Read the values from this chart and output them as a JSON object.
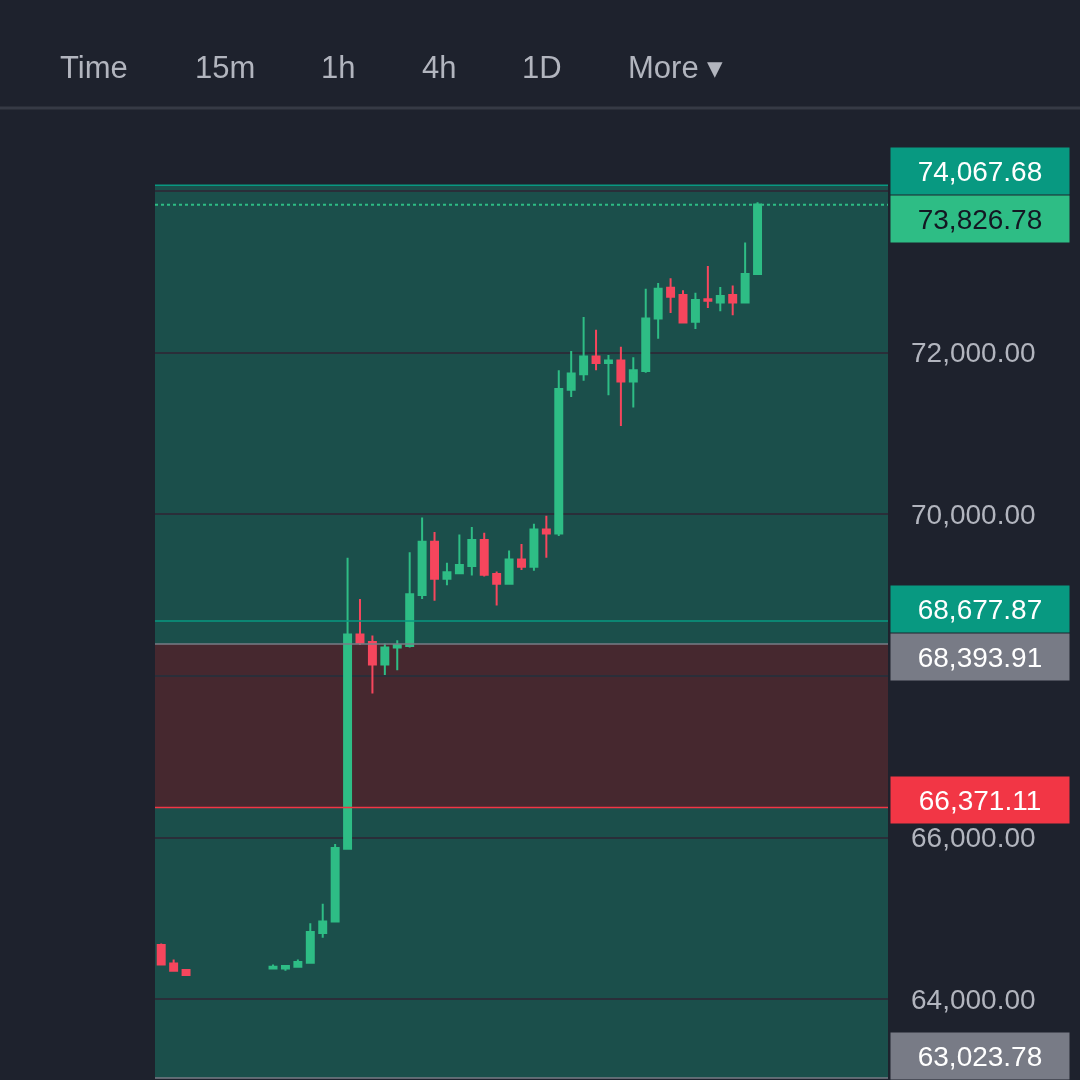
{
  "chart_data": {
    "type": "candlestick",
    "categories": [
      null,
      null,
      null,
      null,
      null,
      null,
      null,
      null,
      null,
      null,
      null,
      null,
      null,
      null,
      null,
      null,
      null,
      null,
      null,
      null,
      null,
      null,
      null,
      null,
      null,
      null,
      null,
      null,
      null,
      null,
      null,
      null,
      null,
      null,
      null,
      null,
      null,
      null,
      null,
      null,
      null,
      null,
      null,
      null,
      null,
      null,
      null,
      null,
      null,
      null,
      null,
      null,
      null,
      null,
      null,
      null,
      null,
      null,
      null
    ],
    "ohlc": [
      [
        64670,
        64690,
        64420,
        64430
      ],
      [
        64440,
        64490,
        64340,
        64350
      ],
      [
        64360,
        64370,
        64290,
        64300
      ],
      null,
      null,
      null,
      null,
      null,
      null,
      [
        64380,
        64430,
        64370,
        64400
      ],
      [
        64380,
        64420,
        64350,
        64410
      ],
      [
        64400,
        64490,
        64390,
        64460
      ],
      [
        64450,
        64940,
        64440,
        64830
      ],
      [
        64820,
        65180,
        64760,
        64960
      ],
      [
        64960,
        65920,
        64950,
        65870
      ],
      [
        65860,
        69460,
        65850,
        68510
      ],
      [
        68510,
        68950,
        68380,
        68410
      ],
      [
        68420,
        68500,
        67780,
        68140
      ],
      [
        68140,
        68400,
        68010,
        68350
      ],
      [
        68350,
        68440,
        68070,
        68380
      ],
      [
        68370,
        69530,
        68350,
        69010
      ],
      [
        69000,
        69960,
        68950,
        69660
      ],
      [
        69660,
        69780,
        68930,
        69200
      ],
      [
        69200,
        69400,
        69120,
        69280
      ],
      [
        69270,
        69750,
        69260,
        69370
      ],
      [
        69360,
        69840,
        69240,
        69680
      ],
      [
        69680,
        69770,
        69230,
        69250
      ],
      [
        69260,
        69290,
        68870,
        69140
      ],
      [
        69140,
        69550,
        69130,
        69440
      ],
      [
        69440,
        69630,
        69310,
        69350
      ],
      [
        69350,
        69880,
        69300,
        69810
      ],
      [
        69810,
        69980,
        69460,
        69760
      ],
      [
        69760,
        71780,
        69730,
        71550
      ],
      [
        71540,
        72020,
        71450,
        71740
      ],
      [
        71730,
        72440,
        71650,
        71950
      ],
      [
        71950,
        72280,
        71780,
        71870
      ],
      [
        71870,
        71970,
        71470,
        71900
      ],
      [
        71900,
        72070,
        71090,
        71640
      ],
      [
        71640,
        71940,
        71320,
        71780
      ],
      [
        71770,
        72790,
        71750,
        72420
      ],
      [
        72420,
        72860,
        72170,
        72790
      ],
      [
        72800,
        72920,
        72490,
        72690
      ],
      [
        72710,
        72770,
        72360,
        72370
      ],
      [
        72380,
        72740,
        72290,
        72650
      ],
      [
        72660,
        73070,
        72550,
        72640
      ],
      [
        72620,
        72810,
        72510,
        72700
      ],
      [
        72710,
        72830,
        72460,
        72620
      ],
      [
        72620,
        73360,
        72610,
        72970
      ],
      [
        72970,
        73860,
        72960,
        73830
      ],
      null,
      null,
      null,
      null,
      null,
      null,
      null,
      null,
      null,
      null
    ],
    "colors": [
      "#f6465d",
      "#f6465d",
      "#f6465d",
      null,
      null,
      null,
      null,
      null,
      null,
      "#2ebd85",
      "#2ebd85",
      "#2ebd85",
      "#2ebd85",
      "#2ebd85",
      "#2ebd85",
      "#2ebd85",
      "#f6465d",
      "#f6465d",
      "#2ebd85",
      "#2ebd85",
      "#2ebd85",
      "#2ebd85",
      "#f6465d",
      "#2ebd85",
      "#2ebd85",
      "#2ebd85",
      "#f6465d",
      "#f6465d",
      "#2ebd85",
      "#f6465d",
      "#2ebd85",
      "#f6465d",
      "#2ebd85",
      "#2ebd85",
      "#2ebd85",
      "#f6465d",
      "#2ebd85",
      "#f6465d",
      "#2ebd85",
      "#2ebd85",
      "#2ebd85",
      "#f6465d",
      "#f6465d",
      "#2ebd85",
      "#f6465d",
      "#2ebd85",
      "#f6465d",
      "#2ebd85",
      "#2ebd85",
      null,
      null,
      null,
      null,
      null,
      null,
      null,
      null,
      null,
      null
    ],
    "ylim": [
      63000,
      75000
    ],
    "yticks": [
      {
        "value": 64000,
        "label": "64,000.00"
      },
      {
        "value": 66000,
        "label": "66,000.00"
      },
      {
        "value": 68000,
        "label": null
      },
      {
        "value": 70000,
        "label": "70,000.00"
      },
      {
        "value": 72000,
        "label": "72,000.00"
      },
      {
        "value": 74000,
        "label": null
      }
    ],
    "bands": [
      {
        "axis": "y",
        "from": 63023.78,
        "to": 68677.87,
        "color": "#1b4f4b"
      },
      {
        "axis": "y",
        "from": 68393.91,
        "to": 74067.68,
        "color": "#1b4f4b"
      },
      {
        "axis": "y",
        "from": 66371.11,
        "to": 68393.91,
        "color": "#46282f"
      }
    ],
    "ref_lines": [
      {
        "axis": "y",
        "value": 74067.68,
        "label": "74,067.68",
        "color": "#089981"
      },
      {
        "axis": "y",
        "value": 73826.78,
        "label": "73,826.78",
        "color": "#2ebd85",
        "line_style": "dotted"
      },
      {
        "axis": "y",
        "value": 68677.87,
        "label": "68,677.87",
        "color": "#089981"
      },
      {
        "axis": "y",
        "value": 68393.91,
        "label": "68,393.91",
        "color": "#787b86",
        "line_style": "solid"
      },
      {
        "axis": "y",
        "value": 66371.11,
        "label": "66,371.11",
        "color": "#f23645"
      },
      {
        "axis": "y",
        "value": 63023.78,
        "label": "63,023.78",
        "color": "#787b86"
      }
    ],
    "annotations": [
      "Time",
      "15m",
      "1h",
      "4h",
      "1D",
      "More ▾"
    ],
    "grid": "y",
    "tick_labels": "y"
  }
}
